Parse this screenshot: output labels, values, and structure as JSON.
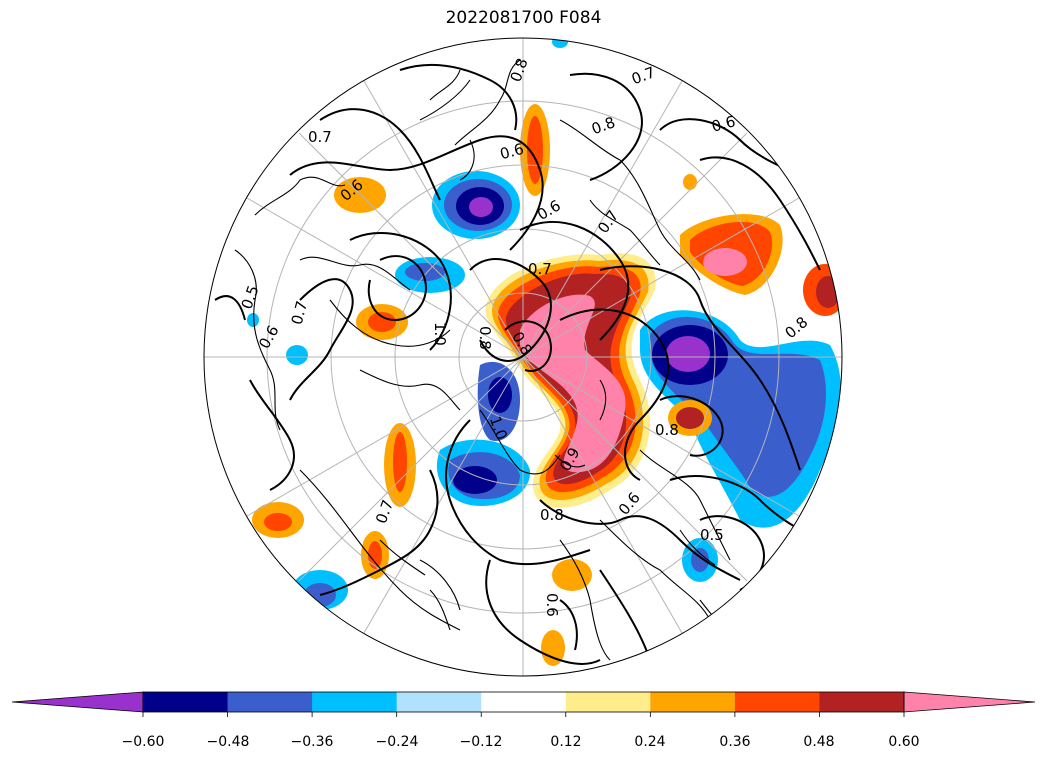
{
  "title": "2022081700 F084",
  "colorbar": {
    "ticks": [
      "−0.60",
      "−0.48",
      "−0.36",
      "−0.24",
      "−0.12",
      "0.12",
      "0.24",
      "0.36",
      "0.48",
      "0.60"
    ],
    "colors": [
      "#9932cc",
      "#00008b",
      "#3a5fcd",
      "#00bfff",
      "#b0e2ff",
      "#ffffff",
      "#ffec8b",
      "#ffa500",
      "#ff4500",
      "#b22222",
      "#ff82ab"
    ]
  },
  "contour_labels": [
    "0.7",
    "0.8",
    "0.6",
    "0.7",
    "0.8",
    "0.6",
    "0.6",
    "0.7",
    "0.6",
    "0.8",
    "0.7",
    "0.8",
    "0.5",
    "0.6",
    "0.7",
    "1.0",
    "0.8",
    "1.0",
    "0.7",
    "0.8",
    "0.6",
    "0.5",
    "0.9",
    "0.8",
    "0.6"
  ]
}
